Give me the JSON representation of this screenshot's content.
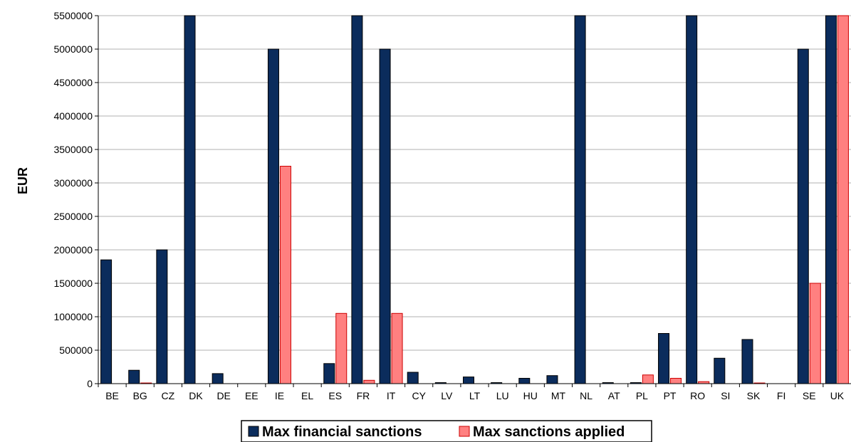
{
  "chart_data": {
    "type": "bar",
    "title": "",
    "xlabel": "",
    "ylabel": "EUR",
    "ylim": [
      0,
      5500000
    ],
    "yticks": [
      0,
      500000,
      1000000,
      1500000,
      2000000,
      2500000,
      3000000,
      3500000,
      4000000,
      4500000,
      5000000,
      5500000
    ],
    "grid": true,
    "legend_position": "bottom",
    "categories": [
      "BE",
      "BG",
      "CZ",
      "DK",
      "DE",
      "EE",
      "IE",
      "EL",
      "ES",
      "FR",
      "IT",
      "CY",
      "LV",
      "LT",
      "LU",
      "HU",
      "MT",
      "NL",
      "AT",
      "PL",
      "PT",
      "RO",
      "SI",
      "SK",
      "FI",
      "SE",
      "UK"
    ],
    "series": [
      {
        "name": "Max financial sanctions",
        "color": "#0b2c5c",
        "values": [
          1850000,
          200000,
          2000000,
          5500000,
          150000,
          0,
          5000000,
          0,
          300000,
          5500000,
          5000000,
          170000,
          15000,
          100000,
          15000,
          80000,
          120000,
          5500000,
          15000,
          15000,
          750000,
          5500000,
          380000,
          660000,
          0,
          5000000,
          5500000
        ]
      },
      {
        "name": "Max sanctions applied",
        "color": "#ff8080",
        "values": [
          0,
          10000,
          0,
          0,
          0,
          0,
          3250000,
          0,
          1050000,
          50000,
          1050000,
          0,
          0,
          0,
          0,
          0,
          0,
          0,
          0,
          130000,
          80000,
          30000,
          0,
          10000,
          0,
          1500000,
          5500000
        ]
      }
    ]
  }
}
